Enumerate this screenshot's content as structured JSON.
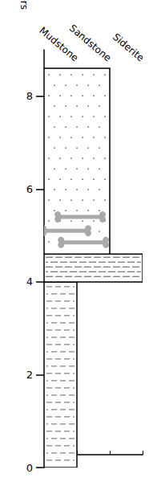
{
  "chart_data": {
    "type": "stratigraphic_column",
    "y_label": "Meters",
    "ylim": [
      0,
      9
    ],
    "yticks": [
      0,
      2,
      4,
      6,
      8
    ],
    "lithologies": [
      "Mudstone",
      "Sandstone",
      "Siderite"
    ],
    "layers": [
      {
        "lithology": "Mudstone",
        "bottom": 0,
        "top": 4
      },
      {
        "lithology": "Siderite",
        "bottom": 4,
        "top": 4.6
      },
      {
        "lithology": "Sandstone",
        "bottom": 4.6,
        "top": 8.6
      }
    ],
    "fossil_heights": [
      5.4,
      5.1,
      4.85
    ]
  }
}
